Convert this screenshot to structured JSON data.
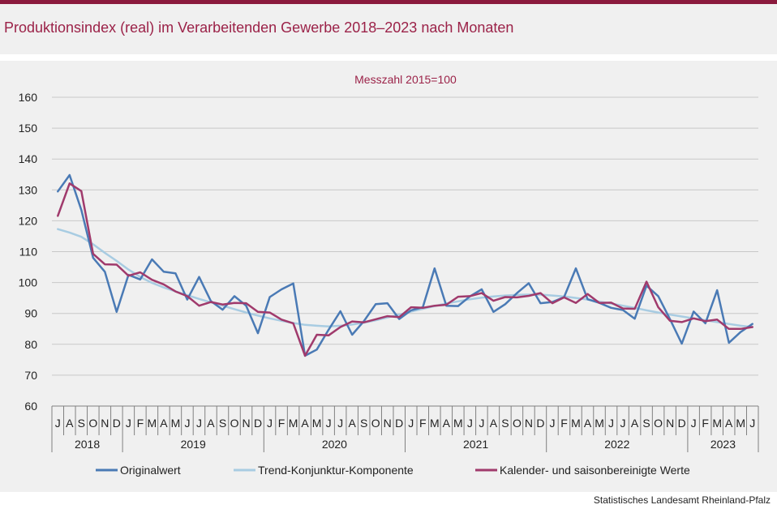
{
  "title": "Produktionsindex (real) im Verarbeitenden Gewerbe 2018–2023 nach Monaten",
  "source": "Statistisches Landesamt Rheinland-Pfalz",
  "colors": {
    "brand": "#8b1a3d",
    "title": "#9b2248",
    "background": "#f0f0f0"
  },
  "chart_data": {
    "type": "line",
    "title": "Messzahl 2015=100",
    "ylim": [
      60,
      160
    ],
    "yticks": [
      60,
      70,
      80,
      90,
      100,
      110,
      120,
      130,
      140,
      150,
      160
    ],
    "grid": true,
    "legend_position": "bottom",
    "month_labels": [
      "J",
      "A",
      "S",
      "O",
      "N",
      "D",
      "J",
      "F",
      "M",
      "A",
      "M",
      "J",
      "J",
      "A",
      "S",
      "O",
      "N",
      "D",
      "J",
      "F",
      "M",
      "A",
      "M",
      "J",
      "J",
      "A",
      "S",
      "O",
      "N",
      "D",
      "J",
      "F",
      "M",
      "A",
      "M",
      "J",
      "J",
      "A",
      "S",
      "O",
      "N",
      "D",
      "J",
      "F",
      "M",
      "A",
      "M",
      "J",
      "J",
      "A",
      "S",
      "O",
      "N",
      "D",
      "J",
      "F",
      "M",
      "A",
      "M",
      "J"
    ],
    "years": [
      {
        "label": "2018",
        "months": 6
      },
      {
        "label": "2019",
        "months": 12
      },
      {
        "label": "2020",
        "months": 12
      },
      {
        "label": "2021",
        "months": 12
      },
      {
        "label": "2022",
        "months": 12
      },
      {
        "label": "2023",
        "months": 6
      }
    ],
    "series": [
      {
        "name": "Originalwert",
        "color": "#4a7ab5",
        "values": [
          129.5,
          134.8,
          123.5,
          108,
          103.5,
          90.5,
          102.5,
          101,
          107.5,
          103.5,
          103,
          94.5,
          101.8,
          94,
          91.2,
          95.6,
          92.5,
          83.6,
          95.3,
          97.8,
          99.7,
          76.3,
          78.3,
          84.7,
          90.7,
          83.1,
          87.5,
          93,
          93.3,
          88.2,
          91,
          92,
          104.6,
          92.5,
          92.4,
          95.5,
          97.8,
          90.5,
          93,
          96.6,
          99.8,
          93.3,
          93.7,
          95.3,
          104.6,
          94.6,
          93.4,
          91.8,
          91.1,
          88.3,
          99,
          95.6,
          88.1,
          80.2,
          90.6,
          86.8,
          97.5,
          80.5,
          84,
          86.6
        ]
      },
      {
        "name": "Trend-Konjunktur-Komponente",
        "color": "#a8cce2",
        "values": [
          117.3,
          116.2,
          114.8,
          112.4,
          109.6,
          107,
          104.2,
          101.8,
          99.9,
          98.4,
          97.1,
          95.9,
          94.7,
          93.6,
          92.5,
          91.4,
          90.3,
          89.3,
          88.4,
          87.6,
          86.9,
          86.3,
          86,
          85.8,
          86,
          86.4,
          87,
          87.8,
          88.7,
          89.6,
          90.6,
          91.5,
          92.4,
          93.2,
          93.9,
          94.6,
          95.1,
          95.5,
          95.8,
          96,
          96.1,
          96.1,
          95.8,
          95.5,
          95,
          94.5,
          93.8,
          93.2,
          92.5,
          91.8,
          91,
          90.3,
          89.6,
          89,
          88.4,
          87.8,
          87.2,
          86.6,
          86,
          85.6
        ]
      },
      {
        "name": "Kalender- und saisonbereinigte Werte",
        "color": "#a03a6c",
        "values": [
          121.6,
          132.1,
          129.6,
          109.3,
          105.9,
          105.8,
          102.2,
          103.3,
          100.9,
          99.4,
          97.1,
          95.6,
          92.5,
          93.7,
          92.9,
          93.4,
          93.3,
          90.5,
          90.3,
          88,
          86.8,
          76.3,
          83.1,
          82.9,
          85.6,
          87.4,
          87.1,
          88.1,
          89.1,
          88.8,
          92,
          91.8,
          92.5,
          92.8,
          95.4,
          95.6,
          96.6,
          94.1,
          95.3,
          95.2,
          95.7,
          96.6,
          93.3,
          95.2,
          93.4,
          96.3,
          93.4,
          93.5,
          91.6,
          91.5,
          100.3,
          92,
          87.6,
          87.2,
          88.4,
          87.5,
          88,
          85,
          85,
          85.6
        ]
      }
    ]
  }
}
